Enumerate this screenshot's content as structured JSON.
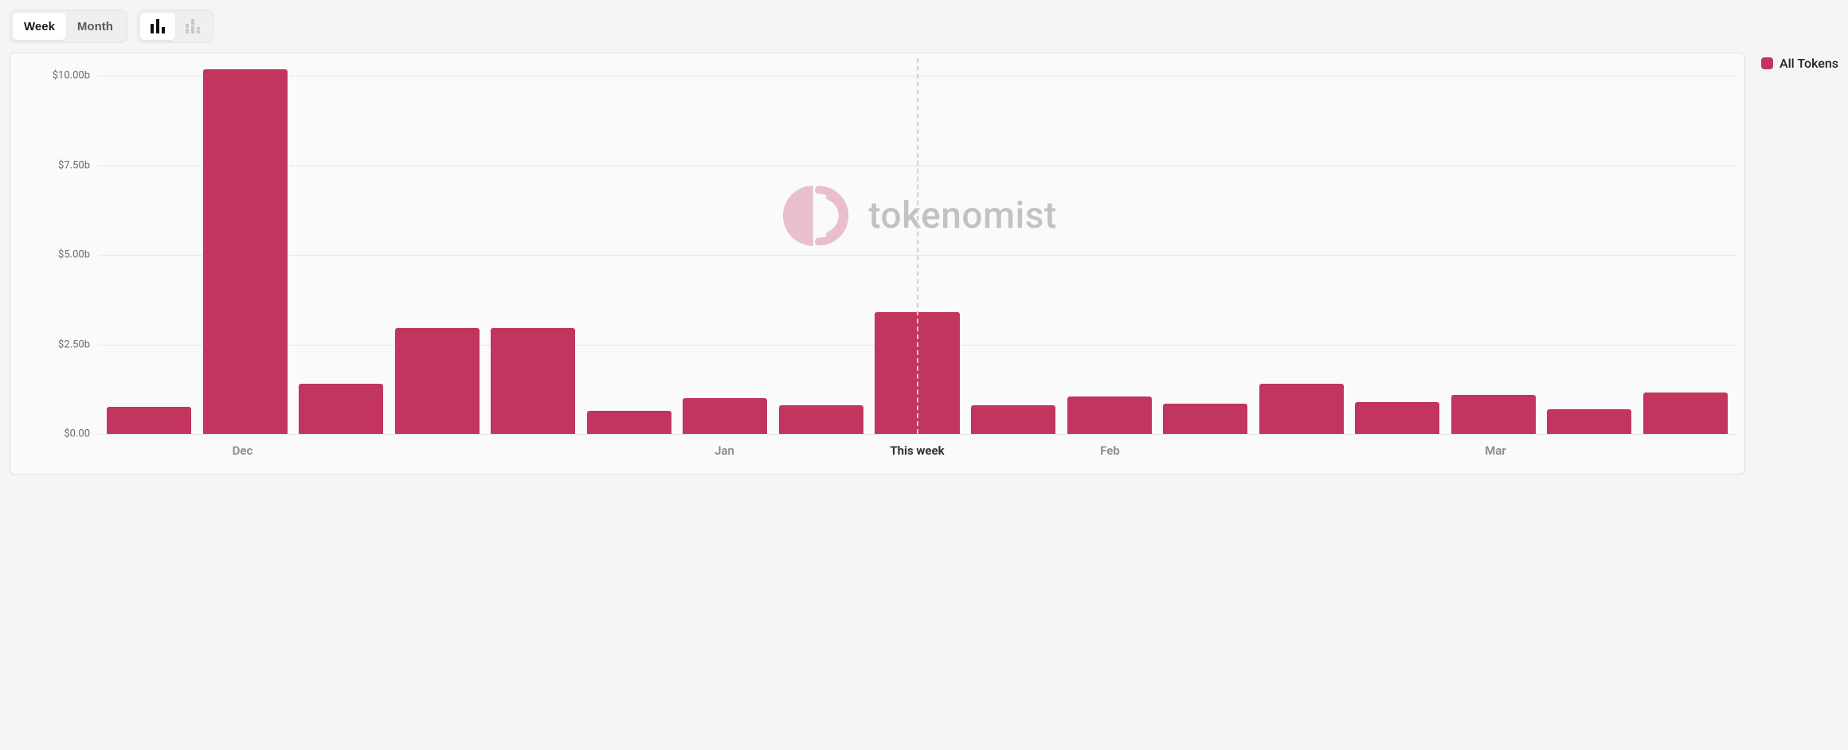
{
  "controls": {
    "period": {
      "week": "Week",
      "month": "Month",
      "active": "week"
    },
    "viewmode": {
      "active": "solid"
    }
  },
  "legend": {
    "label": "All Tokens",
    "color": "#c1355f"
  },
  "chart": {
    "type": "bar",
    "bar_color": "#c1355f",
    "background_color": "#fafafa",
    "grid_color": "#e5e5e5",
    "y": {
      "min": 0,
      "max": 10.5,
      "ticks": [
        {
          "v": 0,
          "label": "$0.00"
        },
        {
          "v": 2.5,
          "label": "$2.50b"
        },
        {
          "v": 5.0,
          "label": "$5.00b"
        },
        {
          "v": 7.5,
          "label": "$7.50b"
        },
        {
          "v": 10.0,
          "label": "$10.00b"
        }
      ]
    },
    "x_labels": [
      {
        "at_index": 1,
        "text": "Dec",
        "emph": false
      },
      {
        "at_index": 6,
        "text": "Jan",
        "emph": false
      },
      {
        "at_index": 8,
        "text": "This week",
        "emph": true
      },
      {
        "at_index": 10,
        "text": "Feb",
        "emph": false
      },
      {
        "at_index": 14,
        "text": "Mar",
        "emph": false
      }
    ],
    "reference_line_index": 8,
    "values": [
      0.75,
      10.2,
      1.4,
      2.95,
      2.95,
      0.65,
      1.0,
      0.8,
      3.4,
      0.8,
      1.05,
      0.85,
      1.4,
      0.9,
      1.1,
      0.7,
      1.15
    ],
    "watermark": "tokenomist"
  }
}
